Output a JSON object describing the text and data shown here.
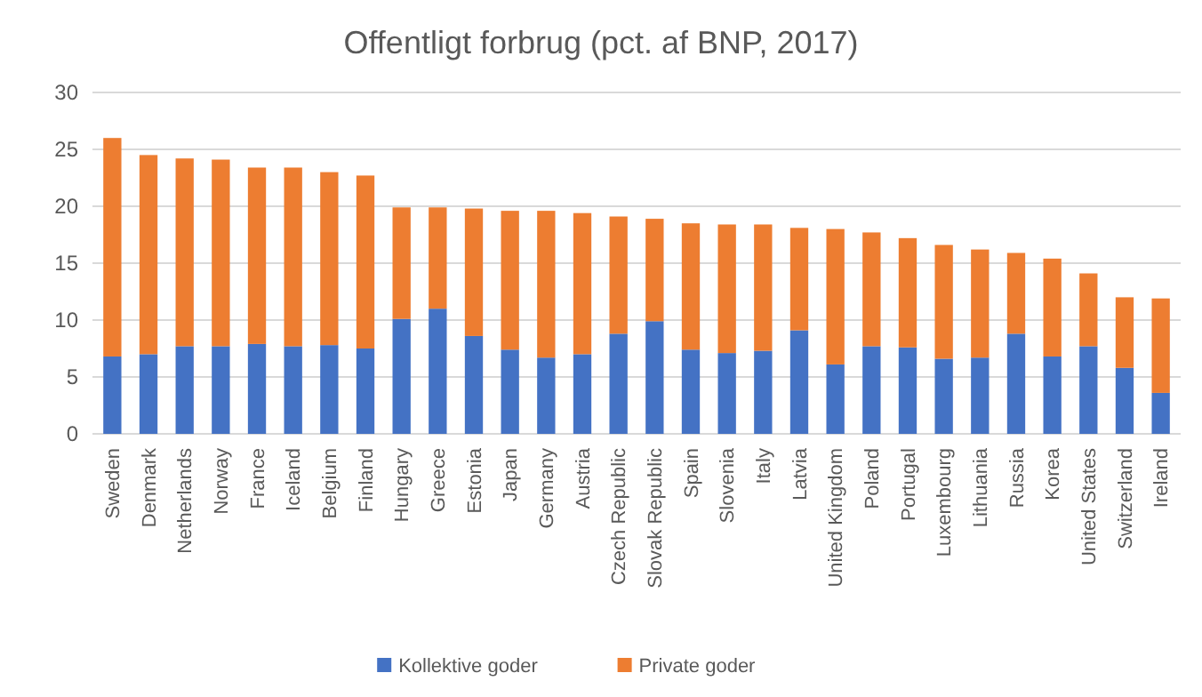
{
  "chart_data": {
    "type": "bar",
    "title": "Offentligt forbrug (pct. af BNP, 2017)",
    "stacked": true,
    "categories": [
      "Sweden",
      "Denmark",
      "Netherlands",
      "Norway",
      "France",
      "Iceland",
      "Belgium",
      "Finland",
      "Hungary",
      "Greece",
      "Estonia",
      "Japan",
      "Germany",
      "Austria",
      "Czech Republic",
      "Slovak Republic",
      "Spain",
      "Slovenia",
      "Italy",
      "Latvia",
      "United Kingdom",
      "Poland",
      "Portugal",
      "Luxembourg",
      "Lithuania",
      "Russia",
      "Korea",
      "United States",
      "Switzerland",
      "Ireland"
    ],
    "series": [
      {
        "name": "Kollektive goder",
        "color": "#4472c4",
        "values": [
          6.8,
          7.0,
          7.7,
          7.7,
          7.9,
          7.7,
          7.8,
          7.5,
          10.1,
          11.0,
          8.6,
          7.4,
          6.7,
          7.0,
          8.8,
          9.9,
          7.4,
          7.1,
          7.3,
          9.1,
          6.1,
          7.7,
          7.6,
          6.6,
          6.7,
          8.8,
          6.8,
          7.7,
          5.8,
          3.6
        ]
      },
      {
        "name": "Private goder",
        "color": "#ed7d31",
        "values": [
          19.2,
          17.5,
          16.5,
          16.4,
          15.5,
          15.7,
          15.2,
          15.2,
          9.8,
          8.9,
          11.2,
          12.2,
          12.9,
          12.4,
          10.3,
          9.0,
          11.1,
          11.3,
          11.1,
          9.0,
          11.9,
          10.0,
          9.6,
          10.0,
          9.5,
          7.1,
          8.6,
          6.4,
          6.2,
          8.3
        ]
      }
    ],
    "ylim": [
      0,
      30
    ],
    "yticks": [
      0,
      5,
      10,
      15,
      20,
      25,
      30
    ],
    "grid": "y",
    "legend": "bottom"
  }
}
